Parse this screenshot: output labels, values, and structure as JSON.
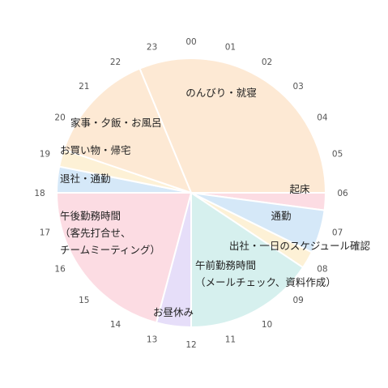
{
  "chart_data": {
    "type": "pie",
    "title": "",
    "start_angle_deg": 0,
    "direction": "clockwise",
    "hour_ticks": [
      "00",
      "01",
      "02",
      "03",
      "04",
      "05",
      "06",
      "07",
      "08",
      "09",
      "10",
      "11",
      "12",
      "13",
      "14",
      "15",
      "16",
      "17",
      "18",
      "19",
      "20",
      "21",
      "22",
      "23"
    ],
    "slices": [
      {
        "label": "のんびり・就寝",
        "start": 22.5,
        "end": 6.0,
        "color": "#FDE9D4"
      },
      {
        "label": "起床",
        "start": 6.0,
        "end": 6.5,
        "color": "#FCDCE3"
      },
      {
        "label": "通勤",
        "start": 6.5,
        "end": 7.75,
        "color": "#D5E8F8"
      },
      {
        "label": "出社・一日のスケジュール確認",
        "start": 7.75,
        "end": 8.25,
        "color": "#FDF1D6"
      },
      {
        "label": "午前勤務時間\n（メールチェック、資料作成）",
        "start": 8.25,
        "end": 12.0,
        "color": "#D6F0EE"
      },
      {
        "label": "お昼休み",
        "start": 12.0,
        "end": 13.0,
        "color": "#E6DEF9"
      },
      {
        "label": "午後勤務時間\n（客先打合せ、\nチームミーティング）",
        "start": 13.0,
        "end": 18.0,
        "color": "#FCDCE3"
      },
      {
        "label": "退社・通勤",
        "start": 18.0,
        "end": 18.75,
        "color": "#D5E8F8"
      },
      {
        "label": "お買い物・帰宅",
        "start": 18.75,
        "end": 19.25,
        "color": "#FDF1D6"
      },
      {
        "label": "家事・夕飯・お風呂",
        "start": 19.25,
        "end": 22.5,
        "color": "#FDE9D4"
      }
    ]
  }
}
